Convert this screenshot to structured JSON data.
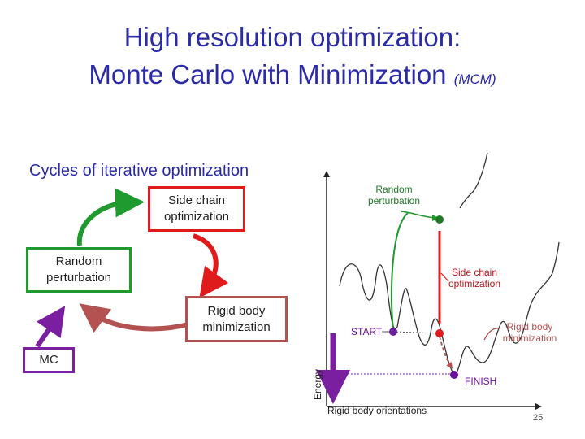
{
  "title": {
    "line1": "High resolution optimization:",
    "line2_main": "Monte Carlo with Minimization",
    "line2_small": "(MCM)"
  },
  "cycle": {
    "heading": "Cycles of iterative optimization",
    "side_chain": "Side chain optimization",
    "random_perturbation": "Random perturbation",
    "rigid_body": "Rigid body minimization",
    "mc": "MC"
  },
  "plot": {
    "ylabel": "Energy",
    "xlabel": "Rigid body orientations",
    "labels": {
      "random_perturbation": "Random perturbation",
      "side_chain": "Side chain optimization",
      "rigid_body": "Rigid body minimization",
      "start": "START",
      "finish": "FINISH"
    }
  },
  "colors": {
    "title": "#2b2ba8",
    "green": "#1f9a2e",
    "red": "#e01b1b",
    "brown": "#b45252",
    "purple": "#7a1fa0",
    "label_green": "#1f7a26",
    "label_red": "#c0101a",
    "label_purple": "#6a0f9a"
  },
  "page_number": "25"
}
